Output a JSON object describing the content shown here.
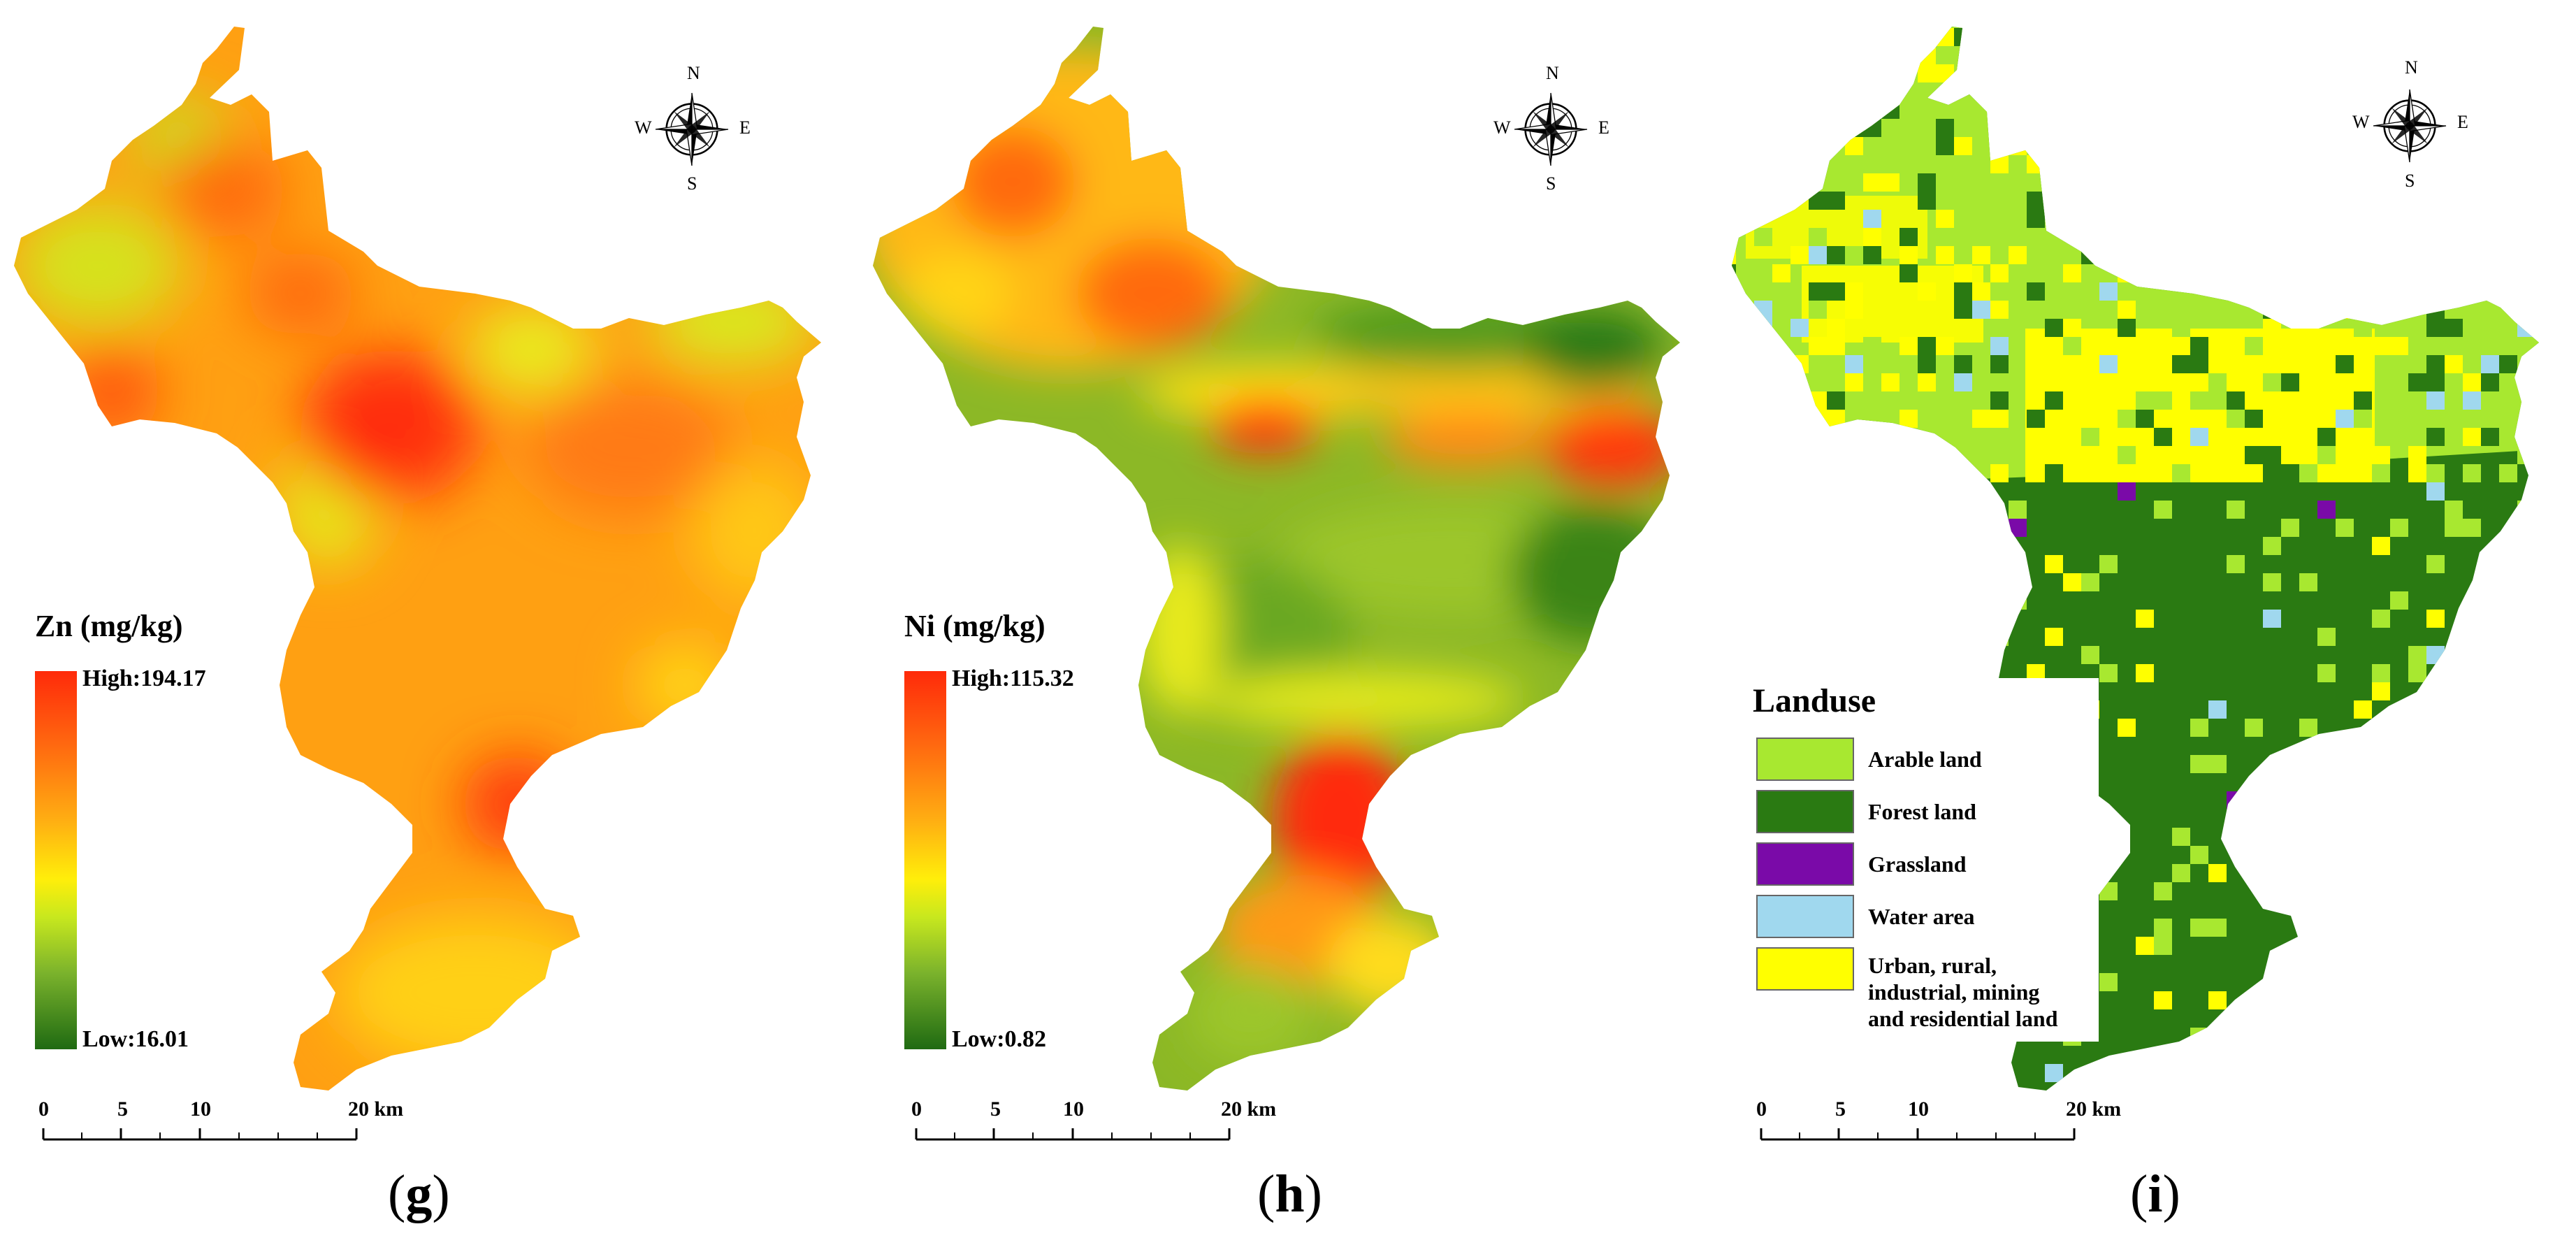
{
  "panels": [
    {
      "id": "g",
      "caption_letter": "g",
      "legend_title": "Zn (mg/kg)",
      "high": "High:194.17",
      "low": "Low:16.01",
      "scale": {
        "labels": [
          "0",
          "5",
          "10",
          "20 km"
        ]
      },
      "compass": {
        "n": "N",
        "s": "S",
        "e": "E",
        "w": "W"
      }
    },
    {
      "id": "h",
      "caption_letter": "h",
      "legend_title": "Ni (mg/kg)",
      "high": "High:115.32",
      "low": "Low:0.82",
      "scale": {
        "labels": [
          "0",
          "5",
          "10",
          "20 km"
        ]
      },
      "compass": {
        "n": "N",
        "s": "S",
        "e": "E",
        "w": "W"
      }
    },
    {
      "id": "i",
      "caption_letter": "i",
      "legend_title": "Landuse",
      "classes": [
        {
          "label": "Arable land",
          "color": "#a8e830"
        },
        {
          "label": "Forest land",
          "color": "#2a7a12"
        },
        {
          "label": "Grassland",
          "color": "#7a0aa8"
        },
        {
          "label": "Water area",
          "color": "#a0d8ee"
        },
        {
          "label": "Urban, rural, industrial, mining and residential land",
          "color": "#ffff00"
        }
      ],
      "scale": {
        "labels": [
          "0",
          "5",
          "10",
          "20 km"
        ]
      },
      "compass": {
        "n": "N",
        "s": "S",
        "e": "E",
        "w": "W"
      }
    }
  ],
  "colors": {
    "high": "#ff2a0a",
    "mid": "#ffee0a",
    "low": "#1f6a12"
  }
}
